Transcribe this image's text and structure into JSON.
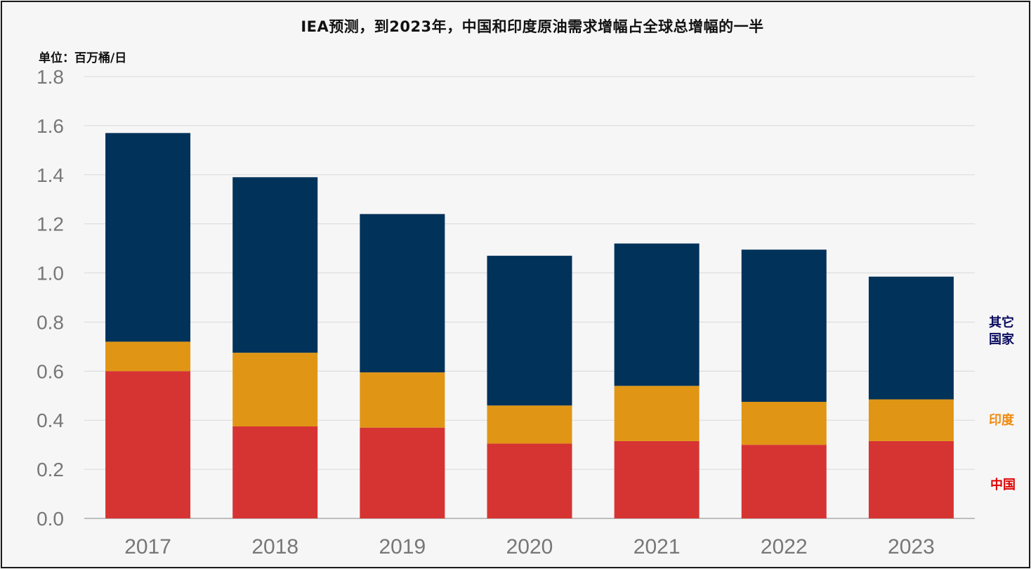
{
  "chart_data": {
    "type": "bar",
    "stacked": true,
    "title": "IEA预测，到2023年，中国和印度原油需求增幅占全球总增幅的一半",
    "unit": "单位：百万桶/日",
    "categories": [
      "2017",
      "2018",
      "2019",
      "2020",
      "2021",
      "2022",
      "2023"
    ],
    "ylim": [
      0,
      1.8
    ],
    "yticks": [
      "0.0",
      "0.2",
      "0.4",
      "0.6",
      "0.8",
      "1.0",
      "1.2",
      "1.4",
      "1.6",
      "1.8"
    ],
    "grid": true,
    "legend_position": "right",
    "series": [
      {
        "name": "中国",
        "color": "#d63433",
        "values": [
          0.6,
          0.375,
          0.37,
          0.305,
          0.315,
          0.3,
          0.315
        ]
      },
      {
        "name": "印度",
        "color": "#e09614",
        "values": [
          0.12,
          0.3,
          0.225,
          0.155,
          0.225,
          0.175,
          0.17
        ]
      },
      {
        "name": "其它国家",
        "color": "#00325a",
        "values": [
          0.85,
          0.715,
          0.645,
          0.61,
          0.58,
          0.62,
          0.5
        ]
      }
    ],
    "legend_colors": {
      "china": "#e00000",
      "india": "#f08a10",
      "others": "#0a0a60"
    },
    "legend_lines": {
      "others": [
        "其它",
        "国家"
      ]
    }
  }
}
